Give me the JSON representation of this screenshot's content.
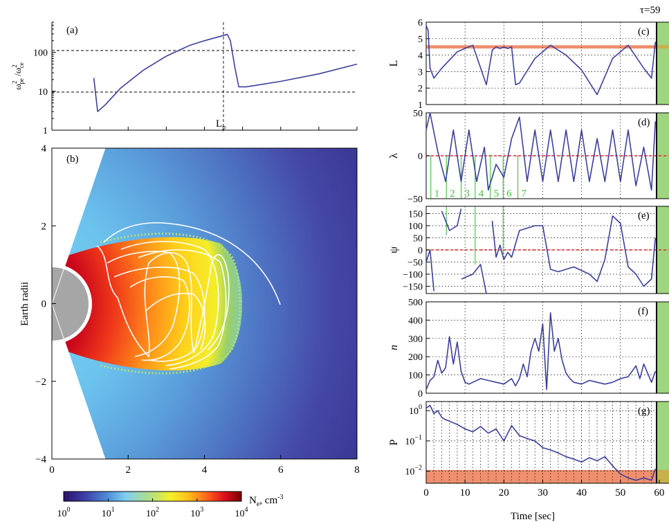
{
  "labels": {
    "tau": "τ=59",
    "time_axis": "Time [sec]",
    "earth_radii": "Earth radii",
    "lp": "L",
    "lp_sub": "p",
    "ratio_label": "ω",
    "colorbar_unit": "N",
    "colorbar_unit_sub": "e",
    "colorbar_unit_tail": ", cm",
    "colorbar_unit_sup": "-3"
  },
  "panels": {
    "a": "(a)",
    "b": "(b)",
    "c": "(c)",
    "d": "(d)",
    "e": "(e)",
    "f": "(f)",
    "g": "(g)"
  },
  "colors": {
    "curve": "#3b3f9a",
    "ref_red": "#e0242a",
    "band_orange": "#ef8f6e",
    "band_green": "#9ed57e",
    "segment_green": "#3fbf3f"
  },
  "chart_data": [
    {
      "id": "a",
      "type": "line",
      "ylabel": "ω_pe^2/ω_ce^2",
      "yscale": "log",
      "ylim": [
        1,
        600
      ],
      "yticks": [
        "1",
        "10",
        "100"
      ],
      "reference_lines": [
        10,
        100
      ],
      "marker_label": "Lp",
      "x": [
        1.1,
        1.2,
        1.4,
        1.8,
        2.4,
        3.0,
        3.6,
        4.0,
        4.6,
        4.68,
        4.8,
        4.9,
        5.1,
        6.0,
        7.0,
        8.0
      ],
      "y": [
        22,
        3,
        4.5,
        12,
        35,
        80,
        150,
        200,
        290,
        200,
        40,
        13,
        13,
        18,
        28,
        50
      ]
    },
    {
      "id": "b",
      "type": "heatmap",
      "xlabel": "",
      "ylabel": "Earth radii",
      "xlim": [
        0,
        8
      ],
      "ylim": [
        -4,
        4
      ],
      "xticks": [
        "0",
        "2",
        "4",
        "6",
        "8"
      ],
      "yticks": [
        "-4",
        "-2",
        "0",
        "2",
        "4"
      ],
      "colorbar": {
        "scale": "log",
        "ticks": [
          "10^0",
          "10^1",
          "10^2",
          "10^3",
          "10^4"
        ],
        "label": "Ne, cm-3"
      }
    },
    {
      "id": "c",
      "type": "line",
      "ylabel": "L",
      "xlim": [
        0,
        60
      ],
      "ylim": [
        1,
        6
      ],
      "yticks": [
        "1",
        "2",
        "3",
        "4",
        "5",
        "6"
      ],
      "band": [
        4.4,
        4.6
      ],
      "x": [
        0,
        0.5,
        1,
        2,
        4,
        8,
        12,
        15.5,
        17,
        18,
        19,
        20,
        21,
        22,
        23,
        24,
        28,
        32,
        36,
        40,
        44,
        48,
        52,
        56,
        58,
        59
      ],
      "y": [
        5.8,
        5.5,
        3.2,
        2.6,
        3.2,
        4.2,
        4.6,
        2.2,
        4.3,
        4.5,
        4.4,
        4.5,
        4.4,
        4.5,
        2.2,
        2.3,
        3.8,
        4.6,
        4.0,
        3.1,
        1.6,
        3.8,
        4.6,
        3.2,
        2.6,
        4.8
      ]
    },
    {
      "id": "d",
      "type": "line",
      "ylabel": "λ",
      "xlim": [
        0,
        60
      ],
      "ylim": [
        -50,
        50
      ],
      "yticks": [
        "-50",
        "0",
        "50"
      ],
      "segment_labels": [
        "1",
        "2",
        "3",
        "4",
        "5",
        "6",
        "7"
      ],
      "x": [
        0,
        1,
        3,
        5,
        7,
        9,
        11,
        13,
        15,
        16,
        18,
        20,
        22,
        24,
        26,
        28,
        30,
        32,
        34,
        36,
        38,
        40,
        42,
        44,
        46,
        48,
        50,
        52,
        54,
        56,
        58,
        59
      ],
      "y": [
        30,
        50,
        5,
        -30,
        30,
        -30,
        30,
        -30,
        10,
        -40,
        -10,
        -25,
        20,
        45,
        -30,
        30,
        -30,
        30,
        -30,
        30,
        -30,
        30,
        -30,
        20,
        -30,
        30,
        -30,
        30,
        -35,
        10,
        -40,
        40
      ]
    },
    {
      "id": "e",
      "type": "line",
      "ylabel": "ψ",
      "xlim": [
        0,
        60
      ],
      "ylim": [
        -180,
        180
      ],
      "yticks": [
        "-150",
        "-100",
        "-50",
        "0",
        "50",
        "100",
        "150"
      ],
      "x": [
        0,
        1,
        2,
        4,
        6,
        8,
        9,
        9.1,
        12,
        14,
        15.5,
        17,
        18,
        19,
        20,
        21,
        22,
        24,
        26,
        28,
        30,
        32,
        34,
        38,
        42,
        44,
        46,
        48,
        50,
        52,
        54,
        56,
        58,
        59
      ],
      "y": [
        -50,
        0,
        -170,
        160,
        80,
        100,
        170,
        -120,
        -100,
        -60,
        -180,
        120,
        -30,
        20,
        -40,
        -10,
        -30,
        80,
        90,
        100,
        100,
        -80,
        -90,
        -70,
        -100,
        -130,
        -40,
        140,
        110,
        -70,
        -100,
        -150,
        -120,
        50
      ]
    },
    {
      "id": "f",
      "type": "line",
      "ylabel": "n",
      "xlim": [
        0,
        60
      ],
      "ylim": [
        0,
        500
      ],
      "yticks": [
        "0",
        "100",
        "200",
        "300",
        "400",
        "500"
      ],
      "x": [
        0,
        1,
        2,
        3,
        4,
        5,
        6,
        7,
        8,
        9,
        10,
        11,
        12,
        14,
        16,
        18,
        20,
        22,
        23,
        24,
        25,
        26,
        27,
        28,
        29,
        30,
        31,
        32,
        33,
        34,
        35,
        36,
        37,
        38,
        40,
        42,
        44,
        46,
        48,
        50,
        52,
        54,
        55,
        56,
        58,
        59
      ],
      "y": [
        20,
        70,
        90,
        180,
        110,
        140,
        310,
        160,
        280,
        120,
        60,
        50,
        60,
        80,
        70,
        60,
        50,
        80,
        40,
        80,
        160,
        90,
        230,
        300,
        230,
        380,
        20,
        440,
        230,
        300,
        180,
        110,
        80,
        60,
        50,
        70,
        60,
        50,
        60,
        80,
        90,
        150,
        80,
        160,
        60,
        120
      ]
    },
    {
      "id": "g",
      "type": "line",
      "ylabel": "P",
      "yscale": "log",
      "xlim": [
        0,
        60
      ],
      "ylim": [
        0.004,
        2
      ],
      "yticks": [
        "10^-2",
        "10^-1",
        "10^0"
      ],
      "xticks": [
        "0",
        "10",
        "20",
        "30",
        "40",
        "50",
        "60"
      ],
      "xlabel": "Time [sec]",
      "band": [
        0.004,
        0.011
      ],
      "x": [
        0,
        1,
        2,
        3,
        4,
        5,
        6,
        8,
        10,
        12,
        14,
        16,
        18,
        20,
        22,
        24,
        26,
        28,
        30,
        32,
        34,
        36,
        38,
        40,
        42,
        44,
        46,
        48,
        50,
        52,
        54,
        56,
        58,
        59
      ],
      "y": [
        1.2,
        1.5,
        0.8,
        1.0,
        0.6,
        0.5,
        0.45,
        0.35,
        0.25,
        0.2,
        0.3,
        0.18,
        0.25,
        0.1,
        0.32,
        0.15,
        0.12,
        0.1,
        0.06,
        0.05,
        0.04,
        0.03,
        0.025,
        0.02,
        0.028,
        0.022,
        0.03,
        0.015,
        0.008,
        0.006,
        0.005,
        0.006,
        0.005,
        0.012
      ]
    }
  ]
}
